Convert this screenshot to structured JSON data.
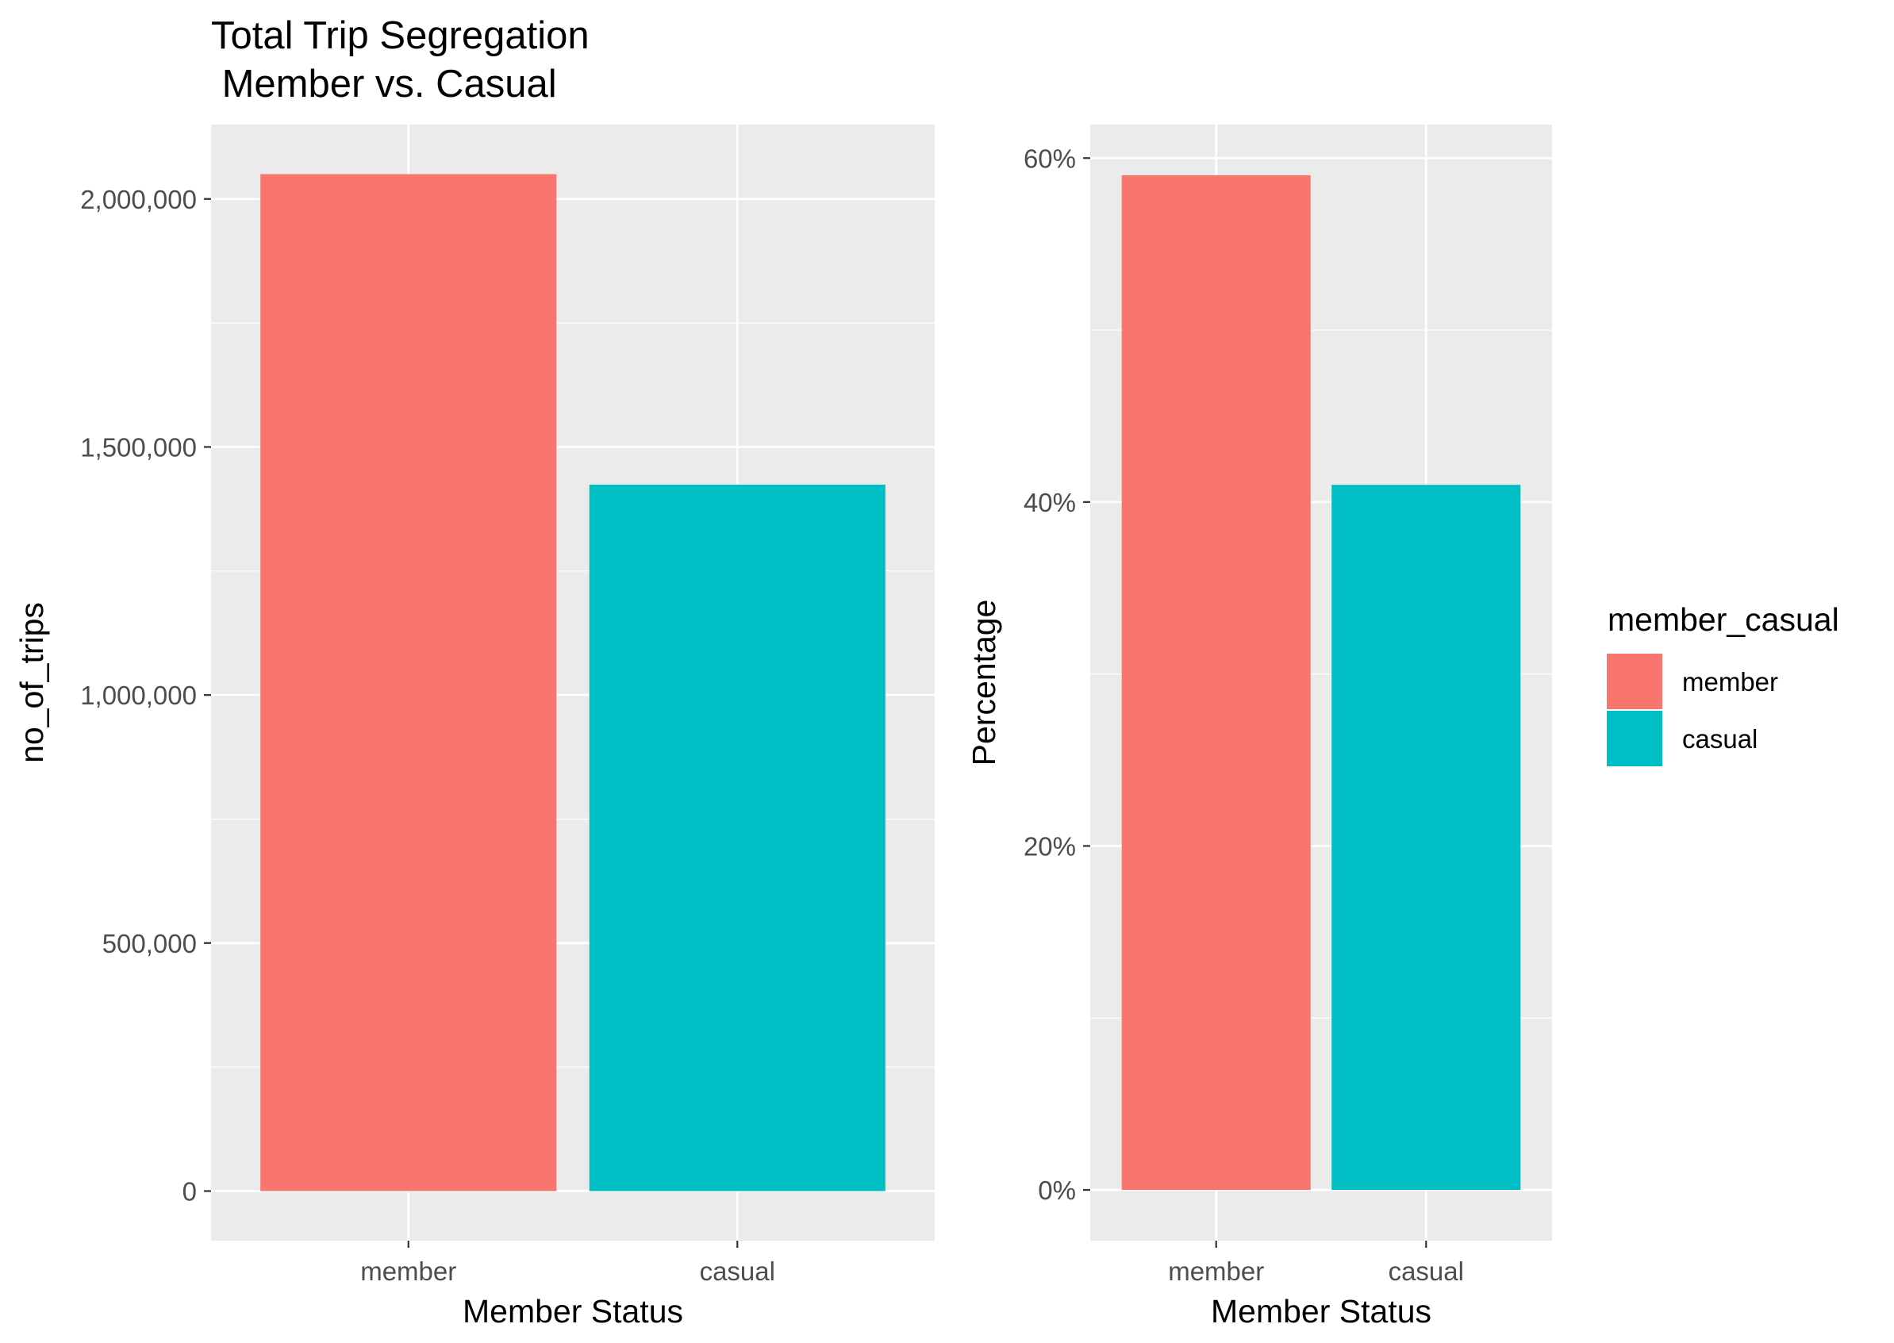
{
  "title_lines": [
    "Total Trip Segregation",
    " Member vs. Casual"
  ],
  "chart_data": [
    {
      "type": "bar",
      "categories": [
        "member",
        "casual"
      ],
      "values": [
        2050000,
        1424000
      ],
      "colors": [
        "#F8766D",
        "#00BFC4"
      ],
      "xlabel": "Member Status",
      "ylabel": "no_of_trips",
      "ylim": [
        -100000,
        2150000
      ],
      "ytick_values": [
        0,
        500000,
        1000000,
        1500000,
        2000000
      ],
      "ytick_labels": [
        "0",
        "500,000",
        "1,000,000",
        "1,500,000",
        "2,000,000"
      ],
      "grid": true
    },
    {
      "type": "bar",
      "categories": [
        "member",
        "casual"
      ],
      "values": [
        59,
        41
      ],
      "colors": [
        "#F8766D",
        "#00BFC4"
      ],
      "xlabel": "Member Status",
      "ylabel": "Percentage",
      "ylim": [
        -2.95,
        61.95
      ],
      "ytick_values": [
        0,
        20,
        40,
        60
      ],
      "ytick_labels": [
        "0%",
        "20%",
        "40%",
        "60%"
      ],
      "grid": true
    }
  ],
  "legend": {
    "title": "member_casual",
    "position": "right",
    "items": [
      {
        "label": "member",
        "color": "#F8766D"
      },
      {
        "label": "casual",
        "color": "#00BFC4"
      }
    ]
  },
  "theme": {
    "panel_background": "#EBEBEB",
    "grid_major": "#FFFFFF",
    "tick_color": "#333333"
  }
}
